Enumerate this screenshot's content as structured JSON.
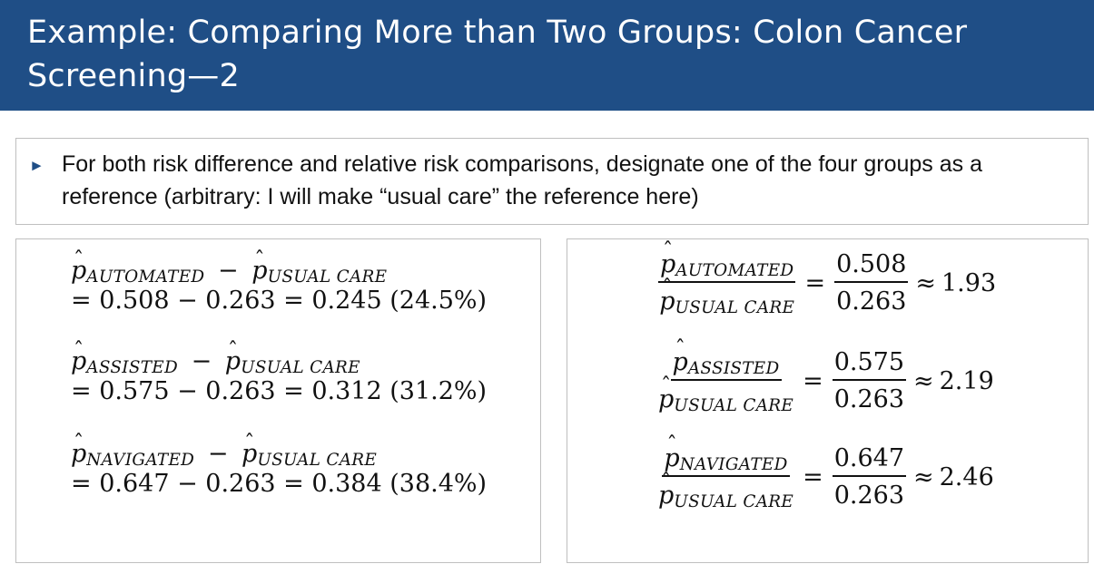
{
  "slide": {
    "title": "Example: Comparing More than Two Groups: Colon Cancer Screening—2",
    "bullet_marker": "►",
    "bullet_text": "For both risk difference and relative risk comparisons, designate one of the four groups as a reference  (arbitrary: I will make “usual care” the reference here)"
  },
  "symbols": {
    "p": "p",
    "hat": "ˆ",
    "minus": "−",
    "equals": "=",
    "approx": "≈"
  },
  "groups": {
    "automated": "AUTOMATED",
    "assisted": "ASSISTED",
    "navigated": "NAVIGATED",
    "usual_care": "USUAL CARE"
  },
  "differences": [
    {
      "rest": "= 0.508  − 0.263 = 0.245 (24.5%)"
    },
    {
      "rest": "= 0.575 − 0.263 = 0.312 (31.2%)"
    },
    {
      "rest": "= 0.647  − 0.263 = 0.384 (38.4%)"
    }
  ],
  "ratios": [
    {
      "num_value": "0.508",
      "den_value": "0.263",
      "result": "1.93"
    },
    {
      "num_value": "0.575",
      "den_value": "0.263",
      "result": "2.19"
    },
    {
      "num_value": "0.647",
      "den_value": "0.263",
      "result": "2.46"
    }
  ],
  "colors": {
    "title_bar": "#1f4e86",
    "title_text": "#ffffff",
    "box_border": "#bfbfbf",
    "text": "#111111"
  }
}
